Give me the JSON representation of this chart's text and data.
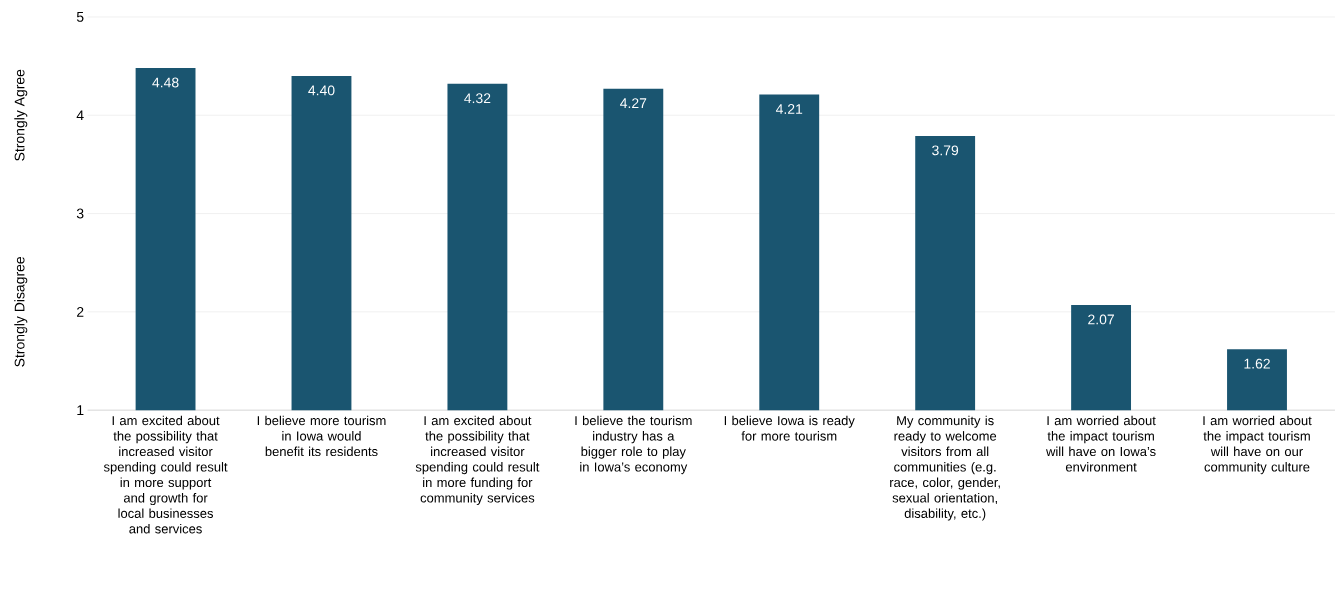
{
  "chart_data": {
    "type": "bar",
    "categories": [
      "I am excited about the possibility that increased visitor spending could result in more support and growth for local businesses and services",
      "I believe more tourism in Iowa would benefit its residents",
      "I am excited about the possibility that increased visitor spending could result in more funding for community services",
      "I believe the tourism industry has a bigger role to play in Iowa’s economy",
      "I believe Iowa is ready for more tourism",
      "My community is ready to welcome visitors from all communities (e.g. race, color, gender, sexual orientation, disability, etc.)",
      "I am worried about the impact tourism will have on Iowa’s environment",
      "I am worried about the impact tourism will have on our community culture"
    ],
    "values": [
      4.48,
      4.4,
      4.32,
      4.27,
      4.21,
      3.79,
      2.07,
      1.62
    ],
    "color": "#1a5570",
    "value_labels": [
      "4.48",
      "4.40",
      "4.32",
      "4.27",
      "4.21",
      "3.79",
      "2.07",
      "1.62"
    ],
    "ylim": [
      1,
      5
    ],
    "yticks": [
      1,
      2,
      3,
      4,
      5
    ],
    "grid": "y",
    "annotations": [
      "Strongly Agree",
      "Strongly Disagree"
    ]
  }
}
